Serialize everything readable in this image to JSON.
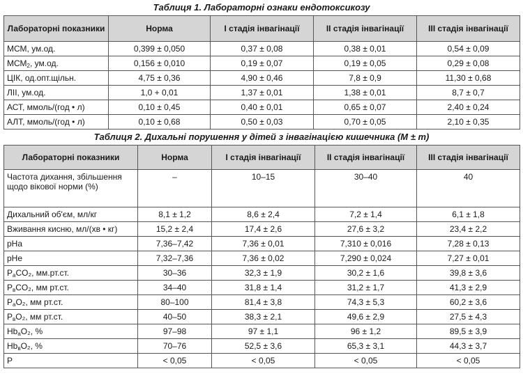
{
  "table1": {
    "caption": "Таблиця 1. Лабораторні ознаки ендотоксикозу",
    "headers": [
      "Лабораторні показники",
      "Норма",
      "I стадія інвагінації",
      "II стадія інвагінації",
      "III стадія інвагінації"
    ],
    "rows": [
      {
        "label_main": "МСМ, ум.од.",
        "label_sub": "",
        "label_rest": "",
        "values": [
          "0,399 ± 0,050",
          "0,37 ± 0,08",
          "0,38 ± 0,01",
          "0,54 ± 0,09"
        ]
      },
      {
        "label_main": "МСМ",
        "label_sub": "2",
        "label_rest": ", ум.од.",
        "values": [
          "0,156 ± 0,010",
          "0,19 ± 0,07",
          "0,19 ± 0,05",
          "0,29 ± 0,08"
        ]
      },
      {
        "label_main": "ЦІК, од.опт.щільн.",
        "label_sub": "",
        "label_rest": "",
        "values": [
          "4,75 ± 0,36",
          "4,90 ± 0,46",
          "7,8 ± 0,9",
          "11,30 ± 0,68"
        ]
      },
      {
        "label_main": "ЛІІ, ум.од.",
        "label_sub": "",
        "label_rest": "",
        "values": [
          "1,0 + 0,01",
          "1,37 ± 0,01",
          "1,38 ± 0,01",
          "8,7 ± 0,7"
        ]
      },
      {
        "label_main": "АСТ, ммоль/(год • л)",
        "label_sub": "",
        "label_rest": "",
        "values": [
          "0,10 ± 0,45",
          "0,40 ± 0,01",
          "0,65 ± 0,07",
          "2,40 ± 0,24"
        ]
      },
      {
        "label_main": "АЛТ, ммоль/(год • л)",
        "label_sub": "",
        "label_rest": "",
        "values": [
          "0,10 ± 0,68",
          "0,50 ± 0,03",
          "0,70 ± 0,05",
          "2,10 ± 0,35"
        ]
      }
    ]
  },
  "table2": {
    "caption": "Таблиця 2. Дихальні порушення у дітей з інвагінацією кишечника (M ± m)",
    "headers": [
      "Лабораторні показники",
      "Норма",
      "I стадія інвагінації",
      "II стадія інвагінації",
      "III стадія інвагінації"
    ],
    "rows": [
      {
        "label_main": "Частота дихання, збільшення щодо вікової норми (%)",
        "label_sub": "",
        "label_rest": "",
        "values": [
          "–",
          "10–15",
          "30–40",
          "40"
        ]
      },
      {
        "label_main": "Дихальний об'єм, мл/кг",
        "label_sub": "",
        "label_rest": "",
        "values": [
          "8,1 ± 1,2",
          "8,6 ± 2,4",
          "7,2 ± 1,4",
          "6,1 ± 1,8"
        ]
      },
      {
        "label_main": "Вживання кисню, мл/(хв • кг)",
        "label_sub": "",
        "label_rest": "",
        "values": [
          "15,2 ± 2,4",
          "17,4 ± 2,6",
          "27,6 ± 3,2",
          "23,4 ± 2,2"
        ]
      },
      {
        "label_main": "pHa",
        "label_sub": "",
        "label_rest": "",
        "values": [
          "7,36–7,42",
          "7,36 ± 0,01",
          "7,310 ± 0,016",
          "7,28 ± 0,13"
        ]
      },
      {
        "label_main": "pHe",
        "label_sub": "",
        "label_rest": "",
        "values": [
          "7,32–7,36",
          "7,36 ± 0,02",
          "7,290 ± 0,024",
          "7,27 ± 0,01"
        ]
      },
      {
        "label_main": "P",
        "label_sub": "a",
        "label_rest": "CO₂, мм.рт.ст.",
        "values": [
          "30–36",
          "32,3 ± 1,9",
          "30,2 ± 1,6",
          "39,8 ± 3,6"
        ]
      },
      {
        "label_main": "P",
        "label_sub": "в",
        "label_rest": "CO₂, мм рт.ст.",
        "values": [
          "34–40",
          "31,8 ± 1,4",
          "31,2 ± 1,7",
          "41,3 ± 2,9"
        ]
      },
      {
        "label_main": "P",
        "label_sub": "a",
        "label_rest": "O₂, мм рт.ст.",
        "values": [
          "80–100",
          "81,4 ± 3,8",
          "74,3 ± 5,3",
          "60,2 ± 3,6"
        ]
      },
      {
        "label_main": "P",
        "label_sub": "в",
        "label_rest": "O₂, мм рт.ст.",
        "values": [
          "40–50",
          "38,3 ± 2,1",
          "49,6 ± 2,9",
          "27,5 ± 4,3"
        ]
      },
      {
        "label_main": "Hb",
        "label_sub": "a",
        "label_rest": "O₂, %",
        "values": [
          "97–98",
          "97 ± 1,1",
          "96 ± 1,2",
          "89,5 ± 3,9"
        ]
      },
      {
        "label_main": "Hb",
        "label_sub": "в",
        "label_rest": "O₂, %",
        "values": [
          "70–76",
          "52,5 ± 3,6",
          "65,3 ± 3,1",
          "44,3 ± 3,7"
        ]
      },
      {
        "label_main": "P",
        "label_sub": "",
        "label_rest": "",
        "values": [
          "< 0,05",
          "< 0,05",
          "< 0,05",
          "< 0,05"
        ]
      }
    ]
  }
}
